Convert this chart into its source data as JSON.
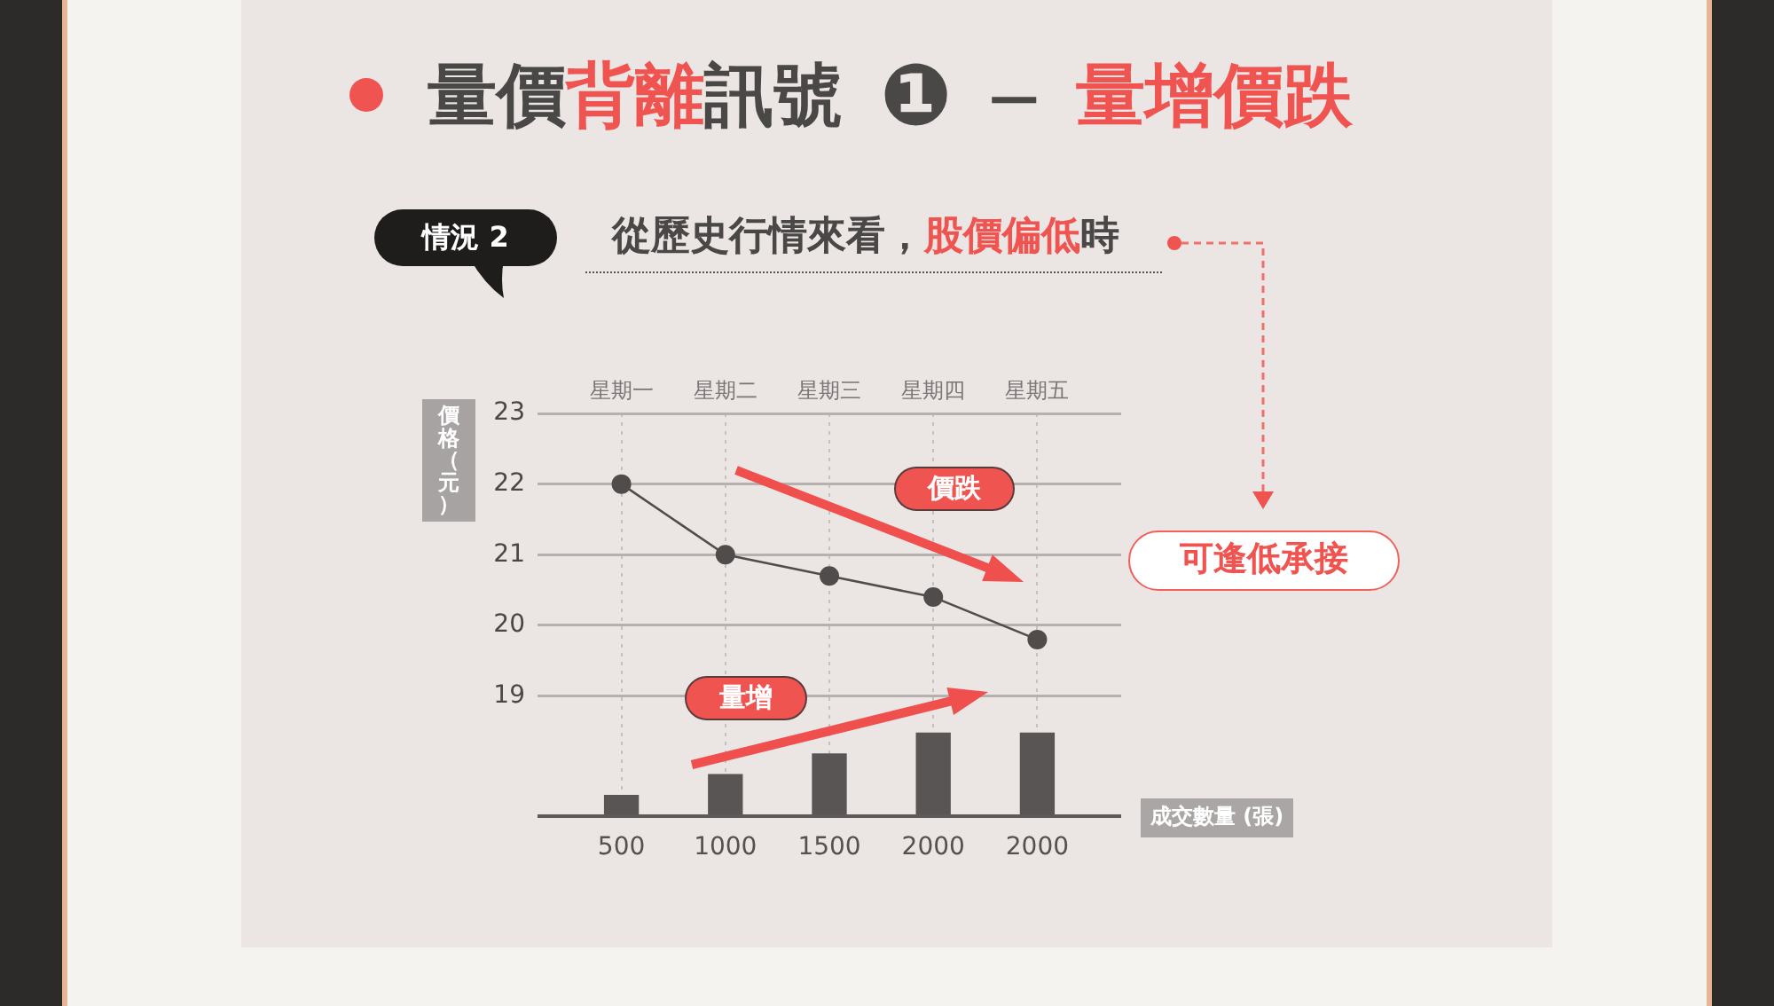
{
  "chart_data": {
    "type": "line",
    "title": "量價背離訊號 ❶ — 量增價跌",
    "subtitle": "從歷史行情來看，股價偏低時",
    "ylabel": "價格（元）",
    "xlabel": "成交數量 (張)",
    "annotations": [
      "情況 2",
      "價跌",
      "量增",
      "可逢低承接"
    ],
    "categories": [
      "星期一",
      "星期二",
      "星期三",
      "星期四",
      "星期五"
    ],
    "series": [
      {
        "color": "#4f4c4b",
        "values": [
          22,
          21,
          20.7,
          20.4,
          19.8
        ]
      },
      {
        "type": "bar",
        "axis": "y2",
        "color": "#585554",
        "values": [
          500,
          1000,
          1500,
          2000,
          2000
        ],
        "value_labels": [
          "500",
          "1000",
          "1500",
          "2000",
          "2000"
        ]
      }
    ],
    "ylim": [
      17.3,
      23
    ],
    "yticks": [
      19,
      20,
      21,
      22,
      23
    ],
    "grid": true,
    "marker": "circle"
  }
}
